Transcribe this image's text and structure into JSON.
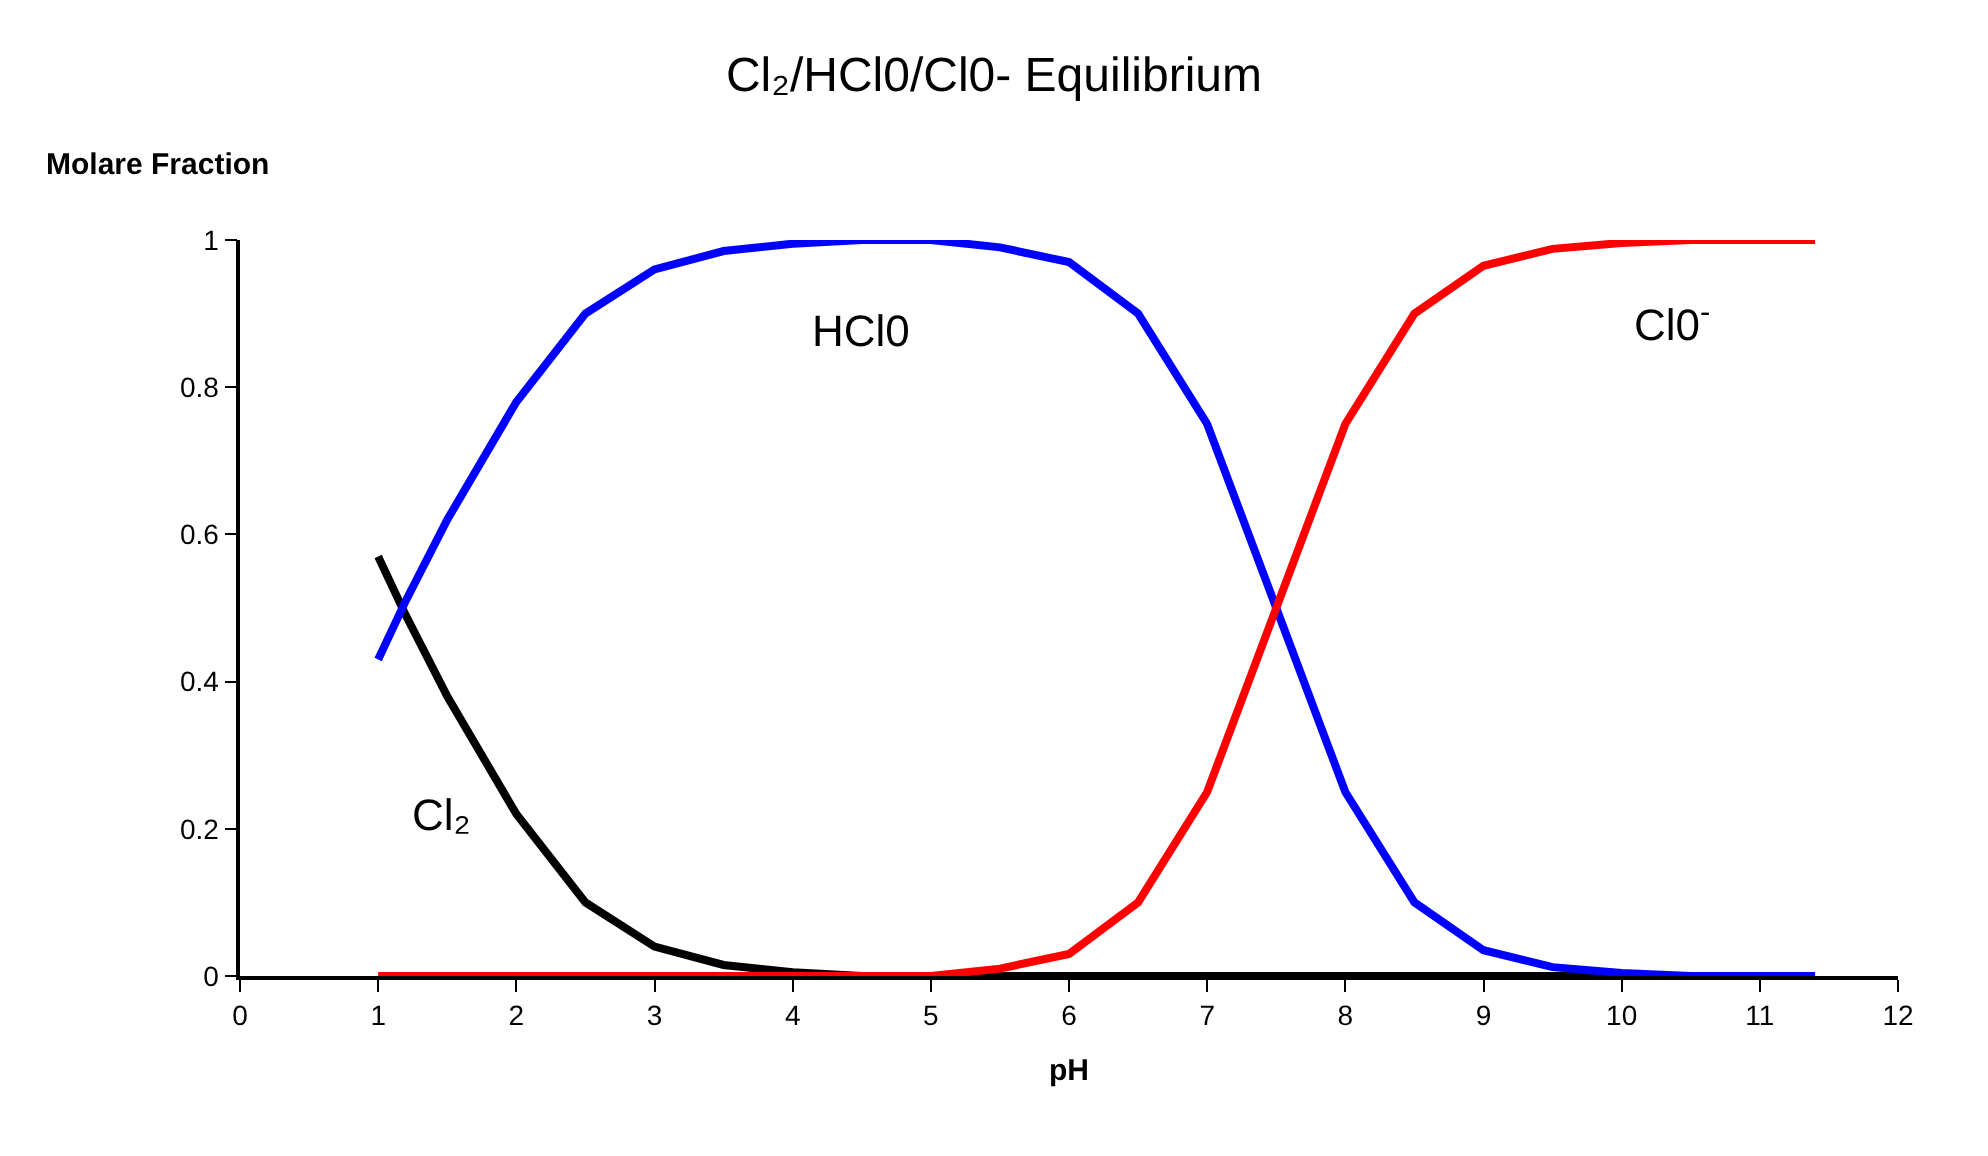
{
  "chart_data": {
    "type": "line",
    "title": "Cl₂/HCl0/Cl0- Equilibrium",
    "xlabel": "pH",
    "ylabel": "Molare Fraction",
    "x": [
      1,
      1.2,
      1.5,
      2,
      2.5,
      3,
      3.5,
      4,
      4.5,
      5,
      5.5,
      6,
      6.5,
      7,
      7.5,
      8,
      8.5,
      9,
      9.5,
      10,
      10.5,
      11,
      11.4
    ],
    "series": [
      {
        "name": "Cl₂",
        "color": "#000000",
        "values": [
          0.57,
          0.49,
          0.38,
          0.22,
          0.1,
          0.04,
          0.015,
          0.005,
          0,
          0,
          0,
          0,
          0,
          0,
          0,
          0,
          0,
          0,
          0,
          0,
          null,
          null,
          null
        ]
      },
      {
        "name": "HCl0",
        "color": "#0000ff",
        "values": [
          0.43,
          0.51,
          0.62,
          0.78,
          0.9,
          0.96,
          0.985,
          0.995,
          1,
          1,
          0.99,
          0.97,
          0.9,
          0.75,
          0.5,
          0.25,
          0.1,
          0.035,
          0.012,
          0.004,
          0,
          0,
          0
        ]
      },
      {
        "name": "Cl0$^{-}$",
        "color": "#ff0000",
        "values": [
          0,
          0,
          0,
          0,
          0,
          0,
          0,
          0,
          0,
          0,
          0.01,
          0.03,
          0.1,
          0.25,
          0.5,
          0.75,
          0.9,
          0.965,
          0.988,
          0.996,
          1,
          1,
          1
        ]
      }
    ],
    "xlim": [
      0,
      12
    ],
    "xticks": [
      0,
      1,
      2,
      3,
      4,
      5,
      6,
      7,
      8,
      9,
      10,
      11,
      12
    ],
    "ylim": [
      0,
      1
    ],
    "yticks": [
      0,
      0.2,
      0.4,
      0.6,
      0.8,
      1
    ],
    "legend": false,
    "marker": "none",
    "line_style": "solid"
  }
}
